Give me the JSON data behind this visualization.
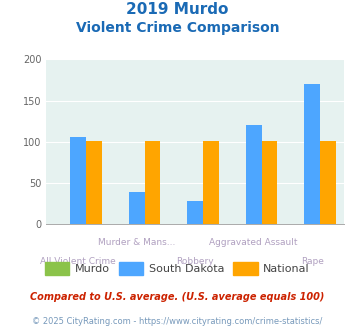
{
  "title_line1": "2019 Murdo",
  "title_line2": "Violent Crime Comparison",
  "line1_labels": [
    "",
    "Murder & Mans...",
    "",
    "Aggravated Assault",
    ""
  ],
  "line2_labels": [
    "All Violent Crime",
    "",
    "Robbery",
    "",
    "Rape"
  ],
  "murdo": [
    0,
    0,
    0,
    0,
    0
  ],
  "south_dakota": [
    106,
    39,
    28,
    121,
    170
  ],
  "national": [
    101,
    101,
    101,
    101,
    101
  ],
  "murdo_color": "#8bc34a",
  "sd_color": "#4da6ff",
  "nat_color": "#ffa500",
  "title_color": "#1a6ab5",
  "label_color": "#b0a0c0",
  "bg_color": "#e6f2f0",
  "ylim": [
    0,
    200
  ],
  "yticks": [
    0,
    50,
    100,
    150,
    200
  ],
  "bar_width": 0.27,
  "legend_labels": [
    "Murdo",
    "South Dakota",
    "National"
  ],
  "footnote1": "Compared to U.S. average. (U.S. average equals 100)",
  "footnote2": "© 2025 CityRating.com - https://www.cityrating.com/crime-statistics/",
  "footnote1_color": "#cc2200",
  "footnote2_color": "#7799bb"
}
